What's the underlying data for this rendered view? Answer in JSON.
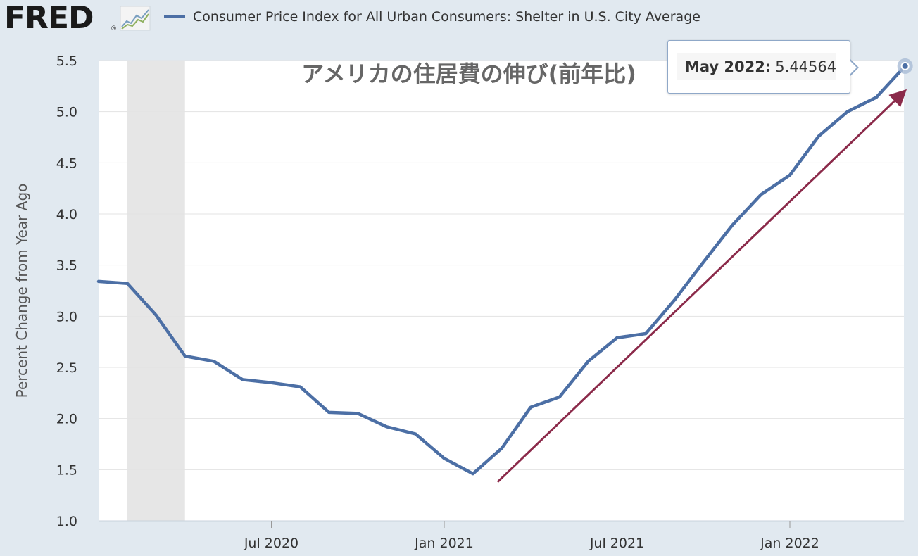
{
  "header": {
    "logo_text": "FRED",
    "logo_mark": "®",
    "logo_icon": "trend-chart-icon",
    "series_label": "Consumer Price Index for All Urban Consumers: Shelter in U.S. City Average",
    "series_color": "#4c6fa5"
  },
  "tooltip": {
    "date_label": "May 2022:",
    "value_label": "5.44564"
  },
  "chart_data": {
    "type": "line",
    "title": "アメリカの住居費の伸び(前年比)",
    "ylabel": "Percent Change from Year Ago",
    "xlabel": "",
    "ylim": [
      1.0,
      5.5
    ],
    "yticks": [
      "1.0",
      "1.5",
      "2.0",
      "2.5",
      "3.0",
      "3.5",
      "4.0",
      "4.5",
      "5.0",
      "5.5"
    ],
    "xticks": [
      "Jul 2020",
      "Jan 2021",
      "Jul 2021",
      "Jan 2022"
    ],
    "grid": true,
    "recession_shading": {
      "from": "2020-02",
      "to": "2020-04",
      "color": "#e6e6e6"
    },
    "series": [
      {
        "name": "Consumer Price Index for All Urban Consumers: Shelter in U.S. City Average",
        "color": "#4c6fa5",
        "points": [
          [
            "2020-01",
            3.34
          ],
          [
            "2020-02",
            3.32
          ],
          [
            "2020-03",
            3.01
          ],
          [
            "2020-04",
            2.61
          ],
          [
            "2020-05",
            2.56
          ],
          [
            "2020-06",
            2.38
          ],
          [
            "2020-07",
            2.35
          ],
          [
            "2020-08",
            2.31
          ],
          [
            "2020-09",
            2.06
          ],
          [
            "2020-10",
            2.05
          ],
          [
            "2020-11",
            1.92
          ],
          [
            "2020-12",
            1.85
          ],
          [
            "2021-01",
            1.61
          ],
          [
            "2021-02",
            1.46
          ],
          [
            "2021-03",
            1.71
          ],
          [
            "2021-04",
            2.11
          ],
          [
            "2021-05",
            2.21
          ],
          [
            "2021-06",
            2.56
          ],
          [
            "2021-07",
            2.79
          ],
          [
            "2021-08",
            2.83
          ],
          [
            "2021-09",
            3.16
          ],
          [
            "2021-10",
            3.53
          ],
          [
            "2021-11",
            3.89
          ],
          [
            "2021-12",
            4.19
          ],
          [
            "2022-01",
            4.38
          ],
          [
            "2022-02",
            4.76
          ],
          [
            "2022-03",
            5.0
          ],
          [
            "2022-04",
            5.14
          ],
          [
            "2022-05",
            5.44564
          ]
        ]
      }
    ],
    "annotation_arrow": {
      "from": [
        "2021-03",
        1.38
      ],
      "to": [
        "2022-05",
        5.19
      ],
      "color": "#8b2a4a"
    },
    "highlight_point": [
      "2022-05",
      5.44564
    ]
  }
}
